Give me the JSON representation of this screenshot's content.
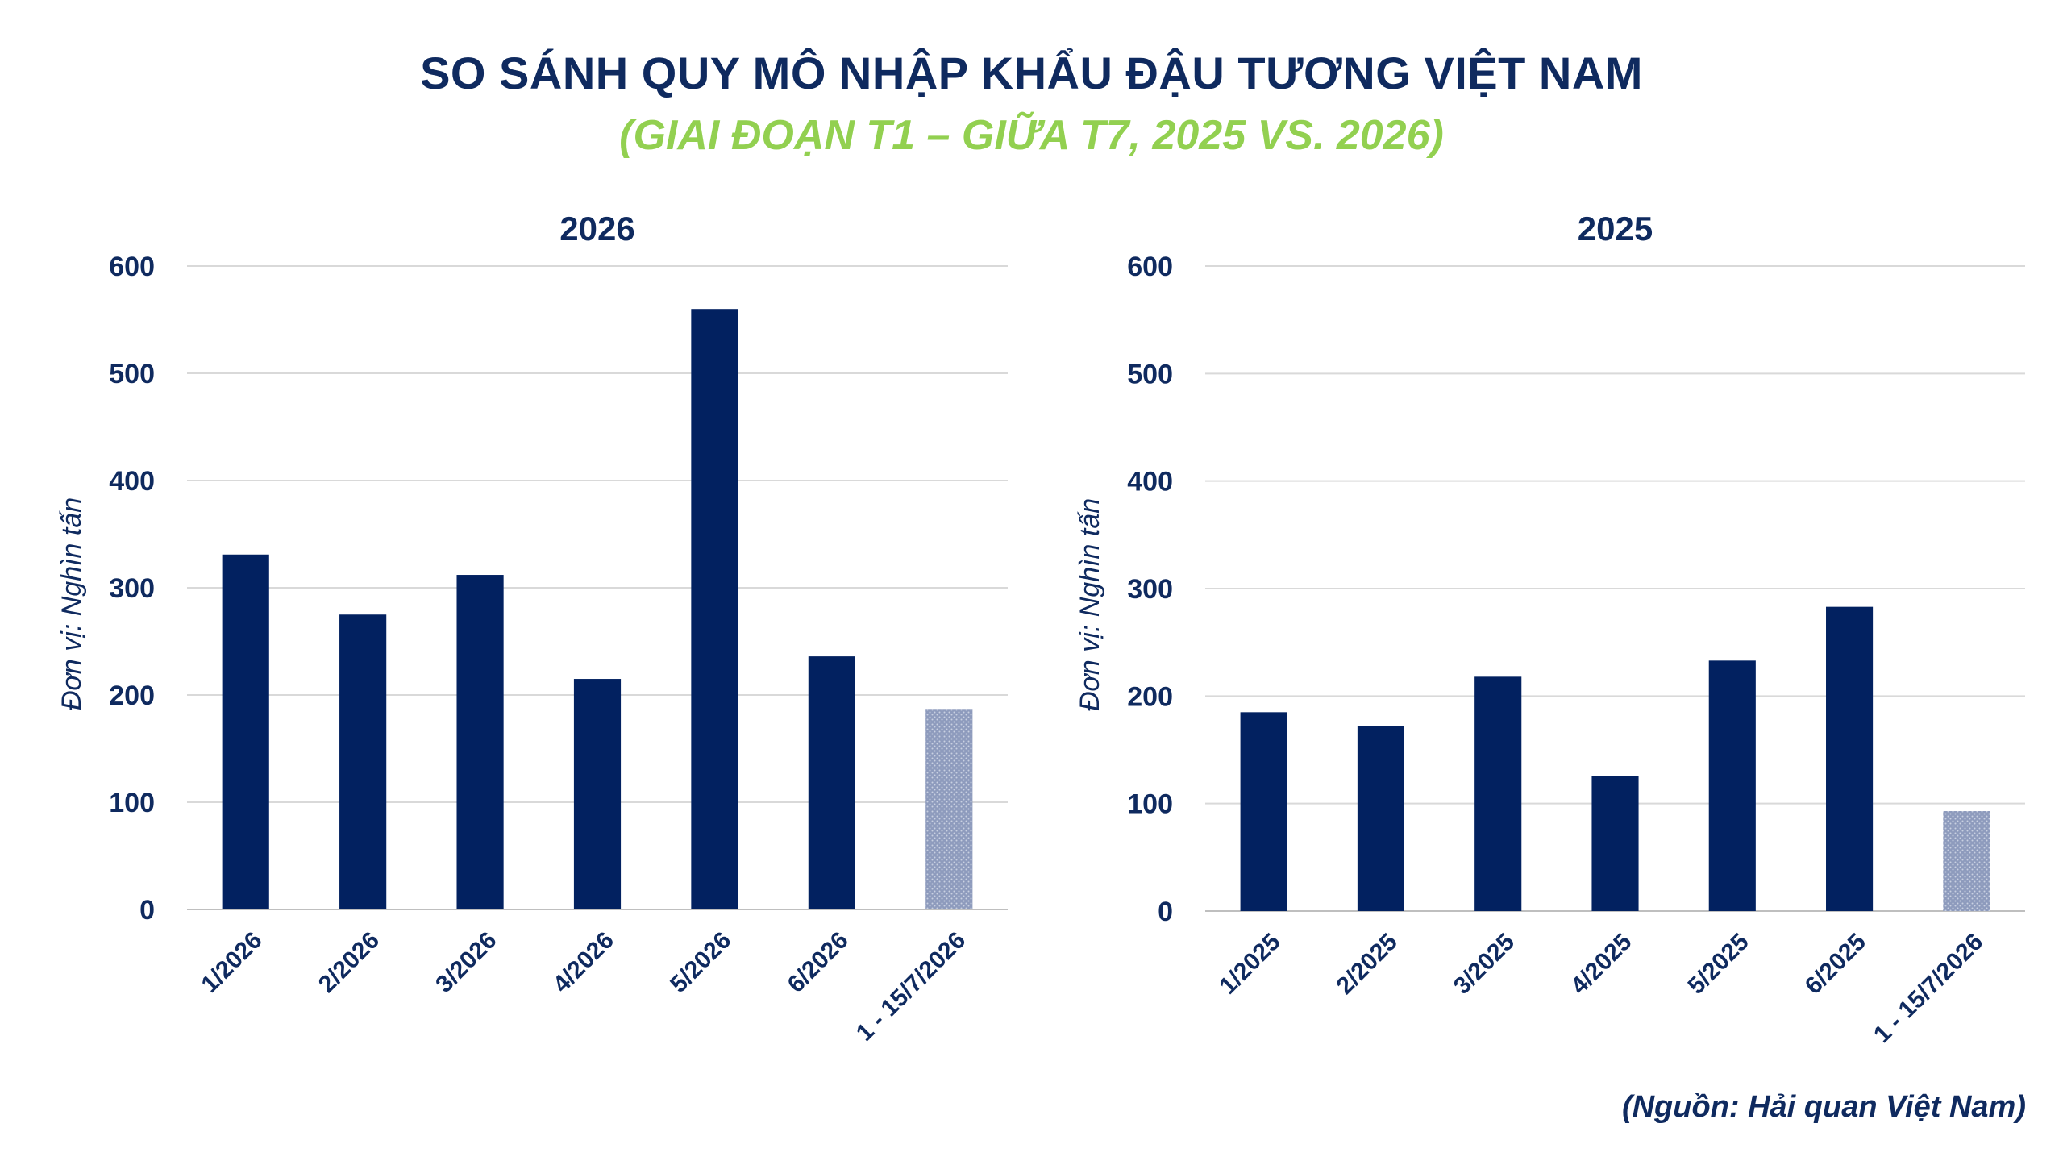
{
  "header": {
    "title": "SO SÁNH QUY MÔ NHẬP KHẨU ĐẬU TƯƠNG VIỆT NAM",
    "subtitle": "(GIAI ĐOẠN T1 – GIỮA T7, 2025 VS. 2026)"
  },
  "footer": {
    "source": "(Nguồn: Hải quan Việt Nam)"
  },
  "colors": {
    "bar": "#022160",
    "partial_bar": "#8e9bbd",
    "grid": "#d9d9d9",
    "text": "#0f2a5f",
    "subtitle": "#92d050"
  },
  "chart_data": [
    {
      "type": "bar",
      "title": "2026",
      "ylabel": "Đơn vị: Nghìn tấn",
      "ylim": [
        0,
        600
      ],
      "yticks": [
        0,
        100,
        200,
        300,
        400,
        500,
        600
      ],
      "grid": true,
      "categories": [
        "1/2026",
        "2/2026",
        "3/2026",
        "4/2026",
        "5/2026",
        "6/2026",
        "1 - 15/7/2026"
      ],
      "values": [
        331,
        275,
        312,
        215,
        560,
        236,
        187
      ],
      "partial": [
        false,
        false,
        false,
        false,
        false,
        false,
        true
      ]
    },
    {
      "type": "bar",
      "title": "2025",
      "ylabel": "Đơn vị: Nghìn tấn",
      "ylim": [
        0,
        600
      ],
      "yticks": [
        0,
        100,
        200,
        300,
        400,
        500,
        600
      ],
      "grid": true,
      "categories": [
        "1/2025",
        "2/2025",
        "3/2025",
        "4/2025",
        "5/2025",
        "6/2025",
        "1 - 15/7/2026"
      ],
      "values": [
        185,
        172,
        218,
        126,
        233,
        283,
        93
      ],
      "partial": [
        false,
        false,
        false,
        false,
        false,
        false,
        true
      ]
    }
  ]
}
